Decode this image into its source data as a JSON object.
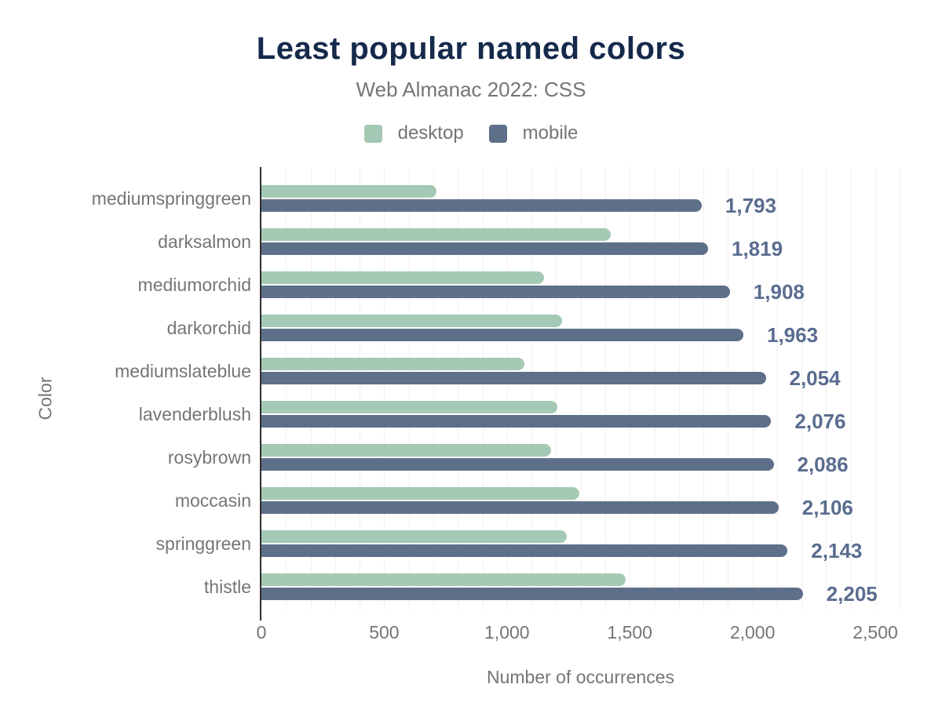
{
  "chart_data": {
    "type": "bar",
    "orientation": "horizontal",
    "title": "Least popular named colors",
    "subtitle": "Web Almanac 2022: CSS",
    "xlabel": "Number of occurrences",
    "ylabel": "Color",
    "categories": [
      "mediumspringgreen",
      "darksalmon",
      "mediumorchid",
      "darkorchid",
      "mediumslateblue",
      "lavenderblush",
      "rosybrown",
      "moccasin",
      "springgreen",
      "thistle"
    ],
    "series": [
      {
        "name": "desktop",
        "color": "#a4c9b4",
        "values": [
          712,
          1424,
          1152,
          1224,
          1072,
          1205,
          1180,
          1293,
          1244,
          1483
        ]
      },
      {
        "name": "mobile",
        "color": "#5e7089",
        "values": [
          1793,
          1819,
          1908,
          1963,
          2054,
          2076,
          2086,
          2106,
          2143,
          2205
        ]
      }
    ],
    "value_labels": [
      "1,793",
      "1,819",
      "1,908",
      "1,963",
      "2,054",
      "2,076",
      "2,086",
      "2,106",
      "2,143",
      "2,205"
    ],
    "x_ticks": [
      "0",
      "500",
      "1,000",
      "1,500",
      "2,000",
      "2,500"
    ],
    "x_tick_values": [
      0,
      500,
      1000,
      1500,
      2000,
      2500
    ],
    "xlim": [
      0,
      2600
    ],
    "grid": "vertical, minor every 100",
    "legend_position": "top"
  },
  "colors": {
    "title": "#15294b",
    "text_muted": "#757575",
    "value_label": "#5a6c8f",
    "desktop": "#a4c9b4",
    "mobile": "#5e7089",
    "gridline": "#efefef",
    "axis_line": "#2f2f2f",
    "background": "#ffffff"
  }
}
